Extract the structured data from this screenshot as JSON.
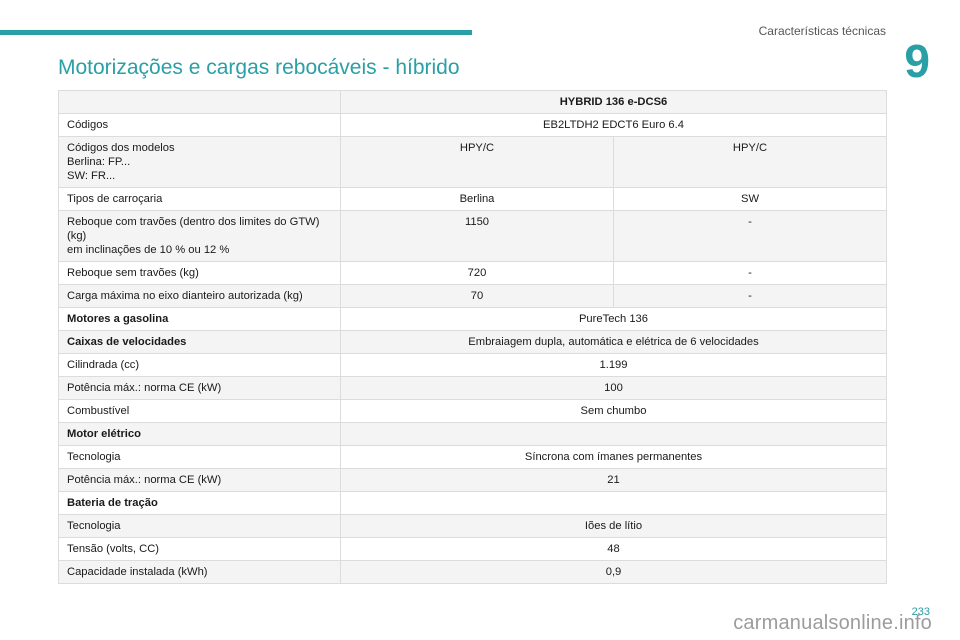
{
  "header": {
    "section": "Características técnicas",
    "chapter_number": "9",
    "accent_color": "#2a9fa5"
  },
  "title": "Motorizações e cargas rebocáveis - híbrido",
  "table": {
    "model": "HYBRID 136 e-DCS6",
    "codigos": {
      "label": "Códigos",
      "value": "EB2LTDH2 EDCT6 Euro 6.4"
    },
    "codigos_modelos": {
      "label_lines": [
        "Códigos dos modelos",
        "Berlina: FP...",
        "SW: FR..."
      ],
      "berlina": "HPY/C",
      "sw": "HPY/C"
    },
    "tipos": {
      "label": "Tipos de carroçaria",
      "berlina": "Berlina",
      "sw": "SW"
    },
    "reboque_com": {
      "label_lines": [
        "Reboque com travões (dentro dos limites do GTW)",
        "(kg)",
        "em inclinações de 10 % ou 12 %"
      ],
      "berlina": "1150",
      "sw": "-"
    },
    "reboque_sem": {
      "label": "Reboque sem travões (kg)",
      "berlina": "720",
      "sw": "-"
    },
    "carga_eixo": {
      "label": "Carga máxima no eixo dianteiro autorizada (kg)",
      "berlina": "70",
      "sw": "-"
    },
    "motores": {
      "label": "Motores a gasolina",
      "value": "PureTech 136"
    },
    "caixas": {
      "label": "Caixas de velocidades",
      "value": "Embraiagem dupla, automática e elétrica de 6 velocidades"
    },
    "cilindrada": {
      "label": "Cilindrada (cc)",
      "value": "1.199"
    },
    "potencia": {
      "label": "Potência máx.: norma CE (kW)",
      "value": "100"
    },
    "combustivel": {
      "label": "Combustível",
      "value": "Sem chumbo"
    },
    "motor_eletrico": {
      "label": "Motor elétrico"
    },
    "tecnologia_motor": {
      "label": "Tecnologia",
      "value": "Síncrona com ímanes permanentes"
    },
    "potencia_eletrica": {
      "label": "Potência máx.: norma CE (kW)",
      "value": "21"
    },
    "bateria": {
      "label": "Bateria de tração"
    },
    "tecnologia_bateria": {
      "label": "Tecnologia",
      "value": "Iões de lítio"
    },
    "tensao": {
      "label": "Tensão (volts, CC)",
      "value": "48"
    },
    "capacidade": {
      "label": "Capacidade instalada (kWh)",
      "value": "0,9"
    }
  },
  "footer": {
    "page_number": "233",
    "watermark": "carmanualsonline.info"
  }
}
